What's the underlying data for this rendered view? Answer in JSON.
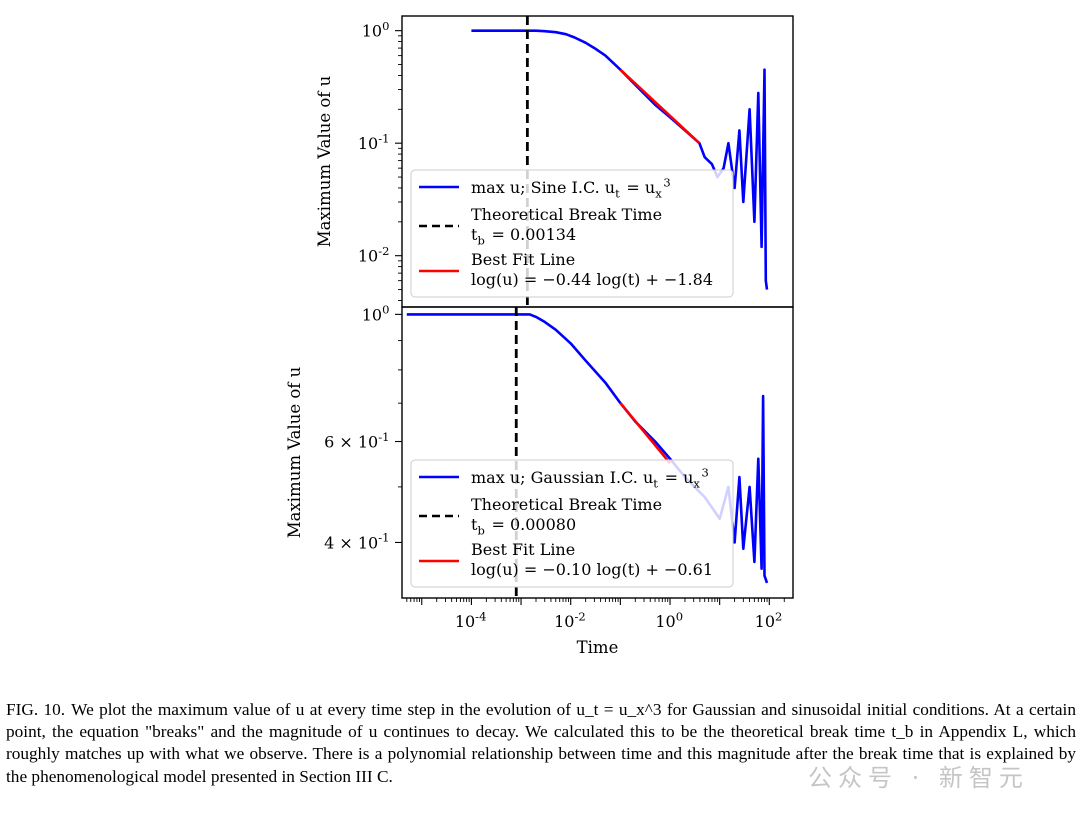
{
  "chart_data": [
    {
      "type": "line",
      "panel": "top",
      "ylabel": "Maximum Value of u",
      "yscale": "log",
      "ylim": [
        0.0035,
        1.35
      ],
      "yticks": [
        1,
        0.1,
        0.01
      ],
      "yticklabels": [
        "10^0",
        "10^-1",
        "10^-2"
      ],
      "xscale": "log",
      "xlim": [
        4e-06,
        300
      ],
      "legend_placement": "lower-left",
      "series": [
        {
          "name": "max u; Sine I.C. u_t = u_x^3",
          "color": "#0000ff",
          "x": [
            0.0001,
            0.001,
            0.00134,
            0.002,
            0.003,
            0.005,
            0.008,
            0.012,
            0.02,
            0.03,
            0.05,
            0.1,
            0.2,
            0.5,
            1,
            2,
            3.9,
            5,
            7,
            9,
            12,
            15,
            20,
            25,
            30,
            40,
            50,
            60,
            70,
            80,
            85,
            90
          ],
          "y": [
            1,
            1,
            1,
            1,
            0.99,
            0.97,
            0.93,
            0.87,
            0.78,
            0.7,
            0.6,
            0.45,
            0.33,
            0.22,
            0.17,
            0.13,
            0.1,
            0.075,
            0.065,
            0.05,
            0.06,
            0.1,
            0.04,
            0.13,
            0.03,
            0.2,
            0.02,
            0.28,
            0.012,
            0.45,
            0.006,
            0.005
          ]
        },
        {
          "name": "Best Fit Line log(u) = -0.44 log(t) + -1.84",
          "color": "#ff0000",
          "x": [
            0.1,
            3.9
          ],
          "y": [
            0.45,
            0.1
          ]
        }
      ],
      "vline": {
        "x": 0.00134,
        "label": "Theoretical Break Time",
        "sublabel": "t_b = 0.00134"
      }
    },
    {
      "type": "line",
      "panel": "bottom",
      "ylabel": "Maximum Value of u",
      "yscale": "log",
      "ylim": [
        0.32,
        1.03
      ],
      "yticks": [
        1,
        0.6,
        0.4
      ],
      "yticklabels": [
        "10^0",
        "6 × 10^-1",
        "4 × 10^-1"
      ],
      "xscale": "log",
      "xlabel": "Time",
      "xlim": [
        4e-06,
        300
      ],
      "xticks": [
        0.0001,
        0.01,
        1,
        100
      ],
      "xticklabels": [
        "10^-4",
        "10^-2",
        "10^0",
        "10^2"
      ],
      "legend_placement": "lower-left",
      "series": [
        {
          "name": "max u; Gaussian I.C. u_t = u_x^3",
          "color": "#0000ff",
          "x": [
            5e-06,
            0.0001,
            0.0008,
            0.0015,
            0.002,
            0.003,
            0.005,
            0.01,
            0.02,
            0.05,
            0.1,
            0.2,
            0.5,
            1,
            2,
            5,
            10,
            15,
            20,
            25,
            30,
            40,
            50,
            60,
            70,
            75,
            80,
            90
          ],
          "y": [
            1,
            1,
            1,
            1,
            0.99,
            0.97,
            0.94,
            0.89,
            0.83,
            0.76,
            0.7,
            0.65,
            0.6,
            0.56,
            0.52,
            0.48,
            0.44,
            0.5,
            0.4,
            0.52,
            0.39,
            0.5,
            0.37,
            0.56,
            0.36,
            0.72,
            0.35,
            0.34
          ]
        },
        {
          "name": "Best Fit Line log(u) = -0.10 log(t) + -0.61",
          "color": "#ff0000",
          "x": [
            0.1,
            1.0
          ],
          "y": [
            0.7,
            0.55
          ]
        }
      ],
      "vline": {
        "x": 0.0008,
        "label": "Theoretical Break Time",
        "sublabel": "t_b = 0.00080"
      }
    }
  ],
  "caption": {
    "label": "FIG. 10.",
    "text": "We plot the maximum value of u at every time step in the evolution of u_t = u_x^3 for Gaussian and sinusoidal initial conditions. At a certain point, the equation \"breaks\" and the magnitude of u continues to decay. We calculated this to be the theoretical break time t_b in Appendix L, which roughly matches up with what we observe. There is a polynomial relationship between time and this magnitude after the break time that is explained by the phenomenological model presented in Section III C."
  },
  "watermark": "公众号 · 新智元"
}
